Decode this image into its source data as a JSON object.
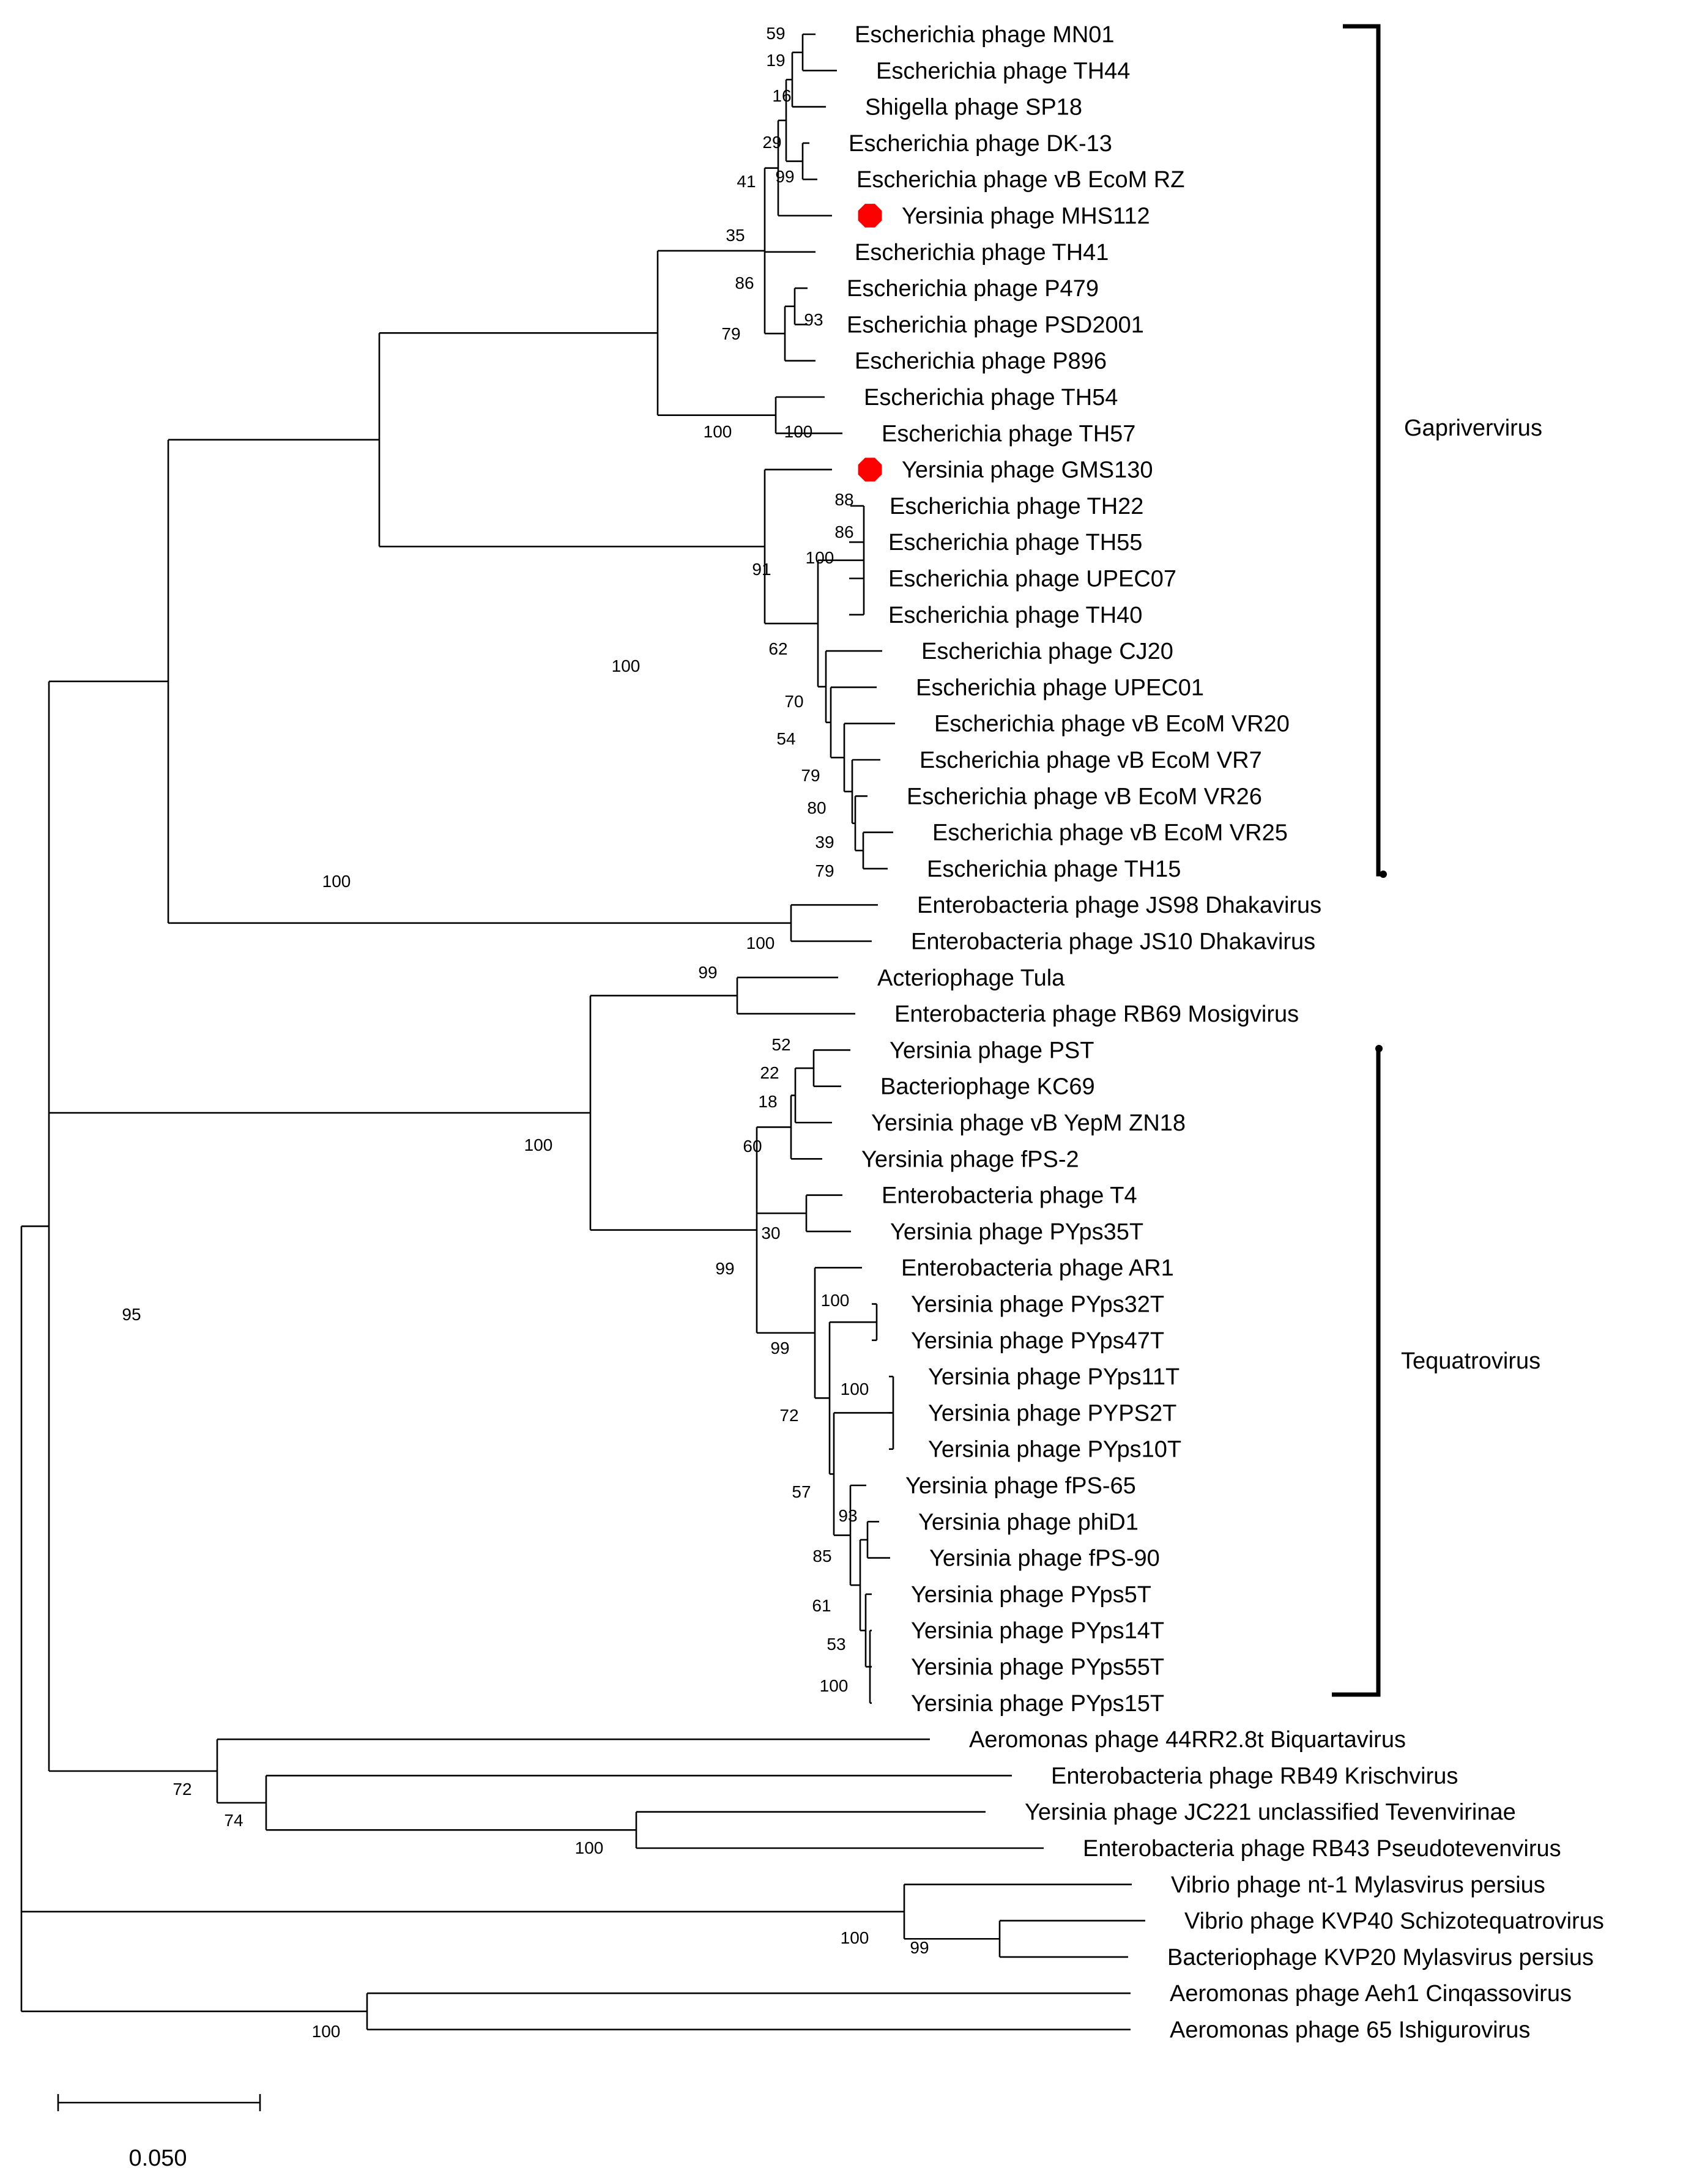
{
  "figure": {
    "type": "phylogenetic-tree",
    "marker_color": "#ff0000",
    "scale_label": "0.050"
  },
  "leaves": [
    "Escherichia phage MN01",
    "Escherichia phage TH44",
    "Shigella phage SP18",
    "Escherichia phage DK-13",
    "Escherichia phage vB EcoM RZ",
    "Yersinia phage MHS112",
    "Escherichia phage TH41",
    "Escherichia phage P479",
    "Escherichia phage PSD2001",
    "Escherichia phage P896",
    "Escherichia phage TH54",
    "Escherichia phage TH57",
    "Yersinia phage GMS130",
    "Escherichia phage TH22",
    "Escherichia phage TH55",
    "Escherichia phage UPEC07",
    "Escherichia phage TH40",
    "Escherichia phage CJ20",
    "Escherichia phage UPEC01",
    "Escherichia phage vB EcoM VR20",
    "Escherichia phage vB EcoM VR7",
    "Escherichia phage vB EcoM VR26",
    "Escherichia phage vB EcoM VR25",
    "Escherichia phage TH15",
    "Enterobacteria phage JS98 Dhakavirus",
    "Enterobacteria phage JS10 Dhakavirus",
    "Acteriophage Tula",
    "Enterobacteria phage RB69 Mosigvirus",
    "Yersinia phage PST",
    "Bacteriophage KC69",
    "Yersinia phage vB YepM ZN18",
    "Yersinia phage fPS-2",
    "Enterobacteria phage T4",
    "Yersinia phage PYps35T",
    "Enterobacteria phage AR1",
    "Yersinia phage PYps32T",
    "Yersinia phage PYps47T",
    "Yersinia phage PYps11T",
    "Yersinia phage PYPS2T",
    "Yersinia phage PYps10T",
    "Yersinia phage fPS-65",
    "Yersinia phage phiD1",
    "Yersinia phage fPS-90",
    "Yersinia phage PYps5T",
    "Yersinia phage PYps14T",
    "Yersinia phage PYps55T",
    "Yersinia phage PYps15T",
    "Aeromonas phage 44RR2.8t Biquartavirus",
    "Enterobacteria phage RB49 Krischvirus",
    "Yersinia phage JC221 unclassified Tevenvirinae",
    "Enterobacteria phage RB43 Pseudotevenvirus",
    "Vibrio phage nt-1 Mylasvirus persius",
    "Vibrio phage KVP40 Schizotequatrovirus",
    "Bacteriophage KVP20 Mylasvirus persius",
    "Aeromonas phage Aeh1 Cinqassovirus",
    "Aeromonas phage 65 Ishigurovirus"
  ],
  "highlighted_leaves": [
    "Yersinia phage MHS112",
    "Yersinia phage GMS130"
  ],
  "bootstrap": [
    "59",
    "19",
    "16",
    "29",
    "99",
    "41",
    "35",
    "86",
    "93",
    "79",
    "100",
    "100",
    "100",
    "88",
    "86",
    "100",
    "91",
    "62",
    "70",
    "54",
    "79",
    "80",
    "39",
    "79",
    "100",
    "100",
    "99",
    "100",
    "52",
    "22",
    "18",
    "60",
    "30",
    "99",
    "100",
    "99",
    "100",
    "72",
    "57",
    "93",
    "85",
    "61",
    "53",
    "100",
    "95",
    "72",
    "74",
    "100",
    "100",
    "99",
    "100"
  ],
  "clades": {
    "gaprivervirus": "Gaprivervirus",
    "tequatrovirus": "Tequatrovirus"
  }
}
